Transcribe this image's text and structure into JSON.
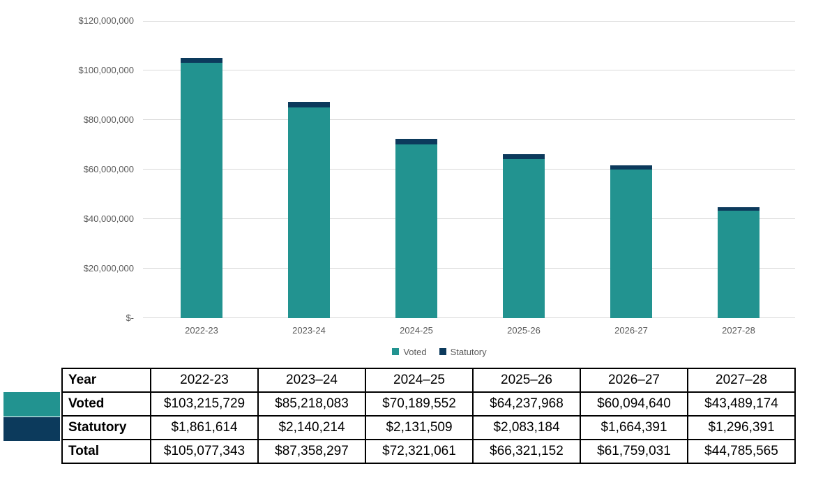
{
  "chart_data": {
    "type": "bar",
    "stacked": true,
    "title": "",
    "xlabel": "",
    "ylabel": "",
    "categories": [
      "2022-23",
      "2023-24",
      "2024-25",
      "2025-26",
      "2026-27",
      "2027-28"
    ],
    "series": [
      {
        "name": "Voted",
        "color": "#229390",
        "values": [
          103215729,
          85218083,
          70189552,
          64237968,
          60094640,
          43489174
        ]
      },
      {
        "name": "Statutory",
        "color": "#0c3a5c",
        "values": [
          1861614,
          2140214,
          2131509,
          2083184,
          1664391,
          1296391
        ]
      }
    ],
    "ylim": [
      0,
      120000000
    ],
    "ytick_step": 20000000,
    "ytick_labels": [
      "$-",
      "$20,000,000",
      "$40,000,000",
      "$60,000,000",
      "$80,000,000",
      "$100,000,000",
      "$120,000,000"
    ],
    "grid": true,
    "gridline_color": "#d9d9d9",
    "axis_text_color": "#595959",
    "legend_position": "bottom"
  },
  "table": {
    "header": {
      "label": "Year",
      "cols": [
        "2022-23",
        "2023–24",
        "2024–25",
        "2025–26",
        "2026–27",
        "2027–28"
      ]
    },
    "rows": [
      {
        "label": "Voted",
        "swatch": "#229390",
        "cells": [
          "$103,215,729",
          "$85,218,083",
          "$70,189,552",
          "$64,237,968",
          "$60,094,640",
          "$43,489,174"
        ]
      },
      {
        "label": "Statutory",
        "swatch": "#0c3a5c",
        "cells": [
          "$1,861,614",
          "$2,140,214",
          "$2,131,509",
          "$2,083,184",
          "$1,664,391",
          "$1,296,391"
        ]
      },
      {
        "label": "Total",
        "swatch": null,
        "cells": [
          "$105,077,343",
          "$87,358,297",
          "$72,321,061",
          "$66,321,152",
          "$61,759,031",
          "$44,785,565"
        ]
      }
    ]
  }
}
